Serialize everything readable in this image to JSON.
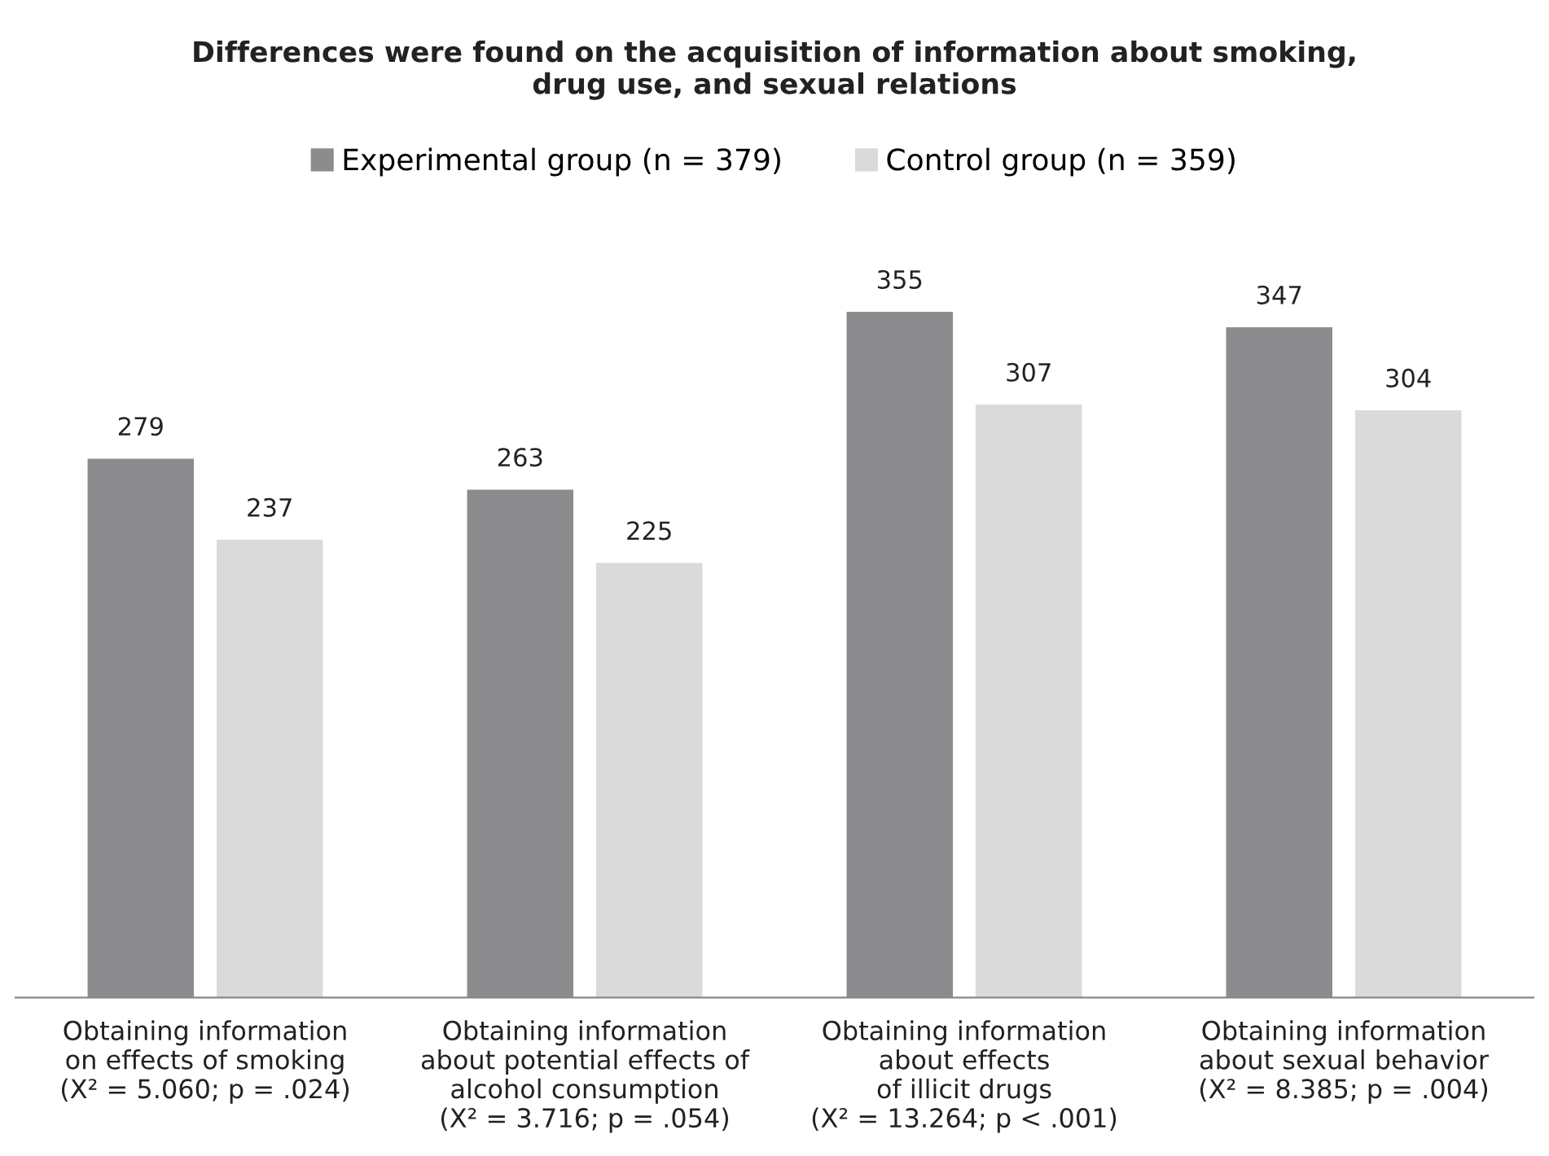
{
  "chart_data": {
    "type": "bar",
    "title": "Differences were found on the acquisition of information about smoking,\ndrug use, and sexual relations",
    "categories": [
      "Obtaining information\non effects of smoking\n(X² = 5.060; p = .024)",
      "Obtaining information\nabout potential effects of\nalcohol consumption\n(X² = 3.716; p = .054)",
      "Obtaining information\nabout effects\nof illicit drugs\n(X² = 13.264; p < .001)",
      "Obtaining information\nabout sexual behavior\n(X² = 8.385; p = .004)"
    ],
    "series": [
      {
        "name": "Experimental group (n = 379)",
        "color": "#8c8c8e",
        "values": [
          279,
          263,
          355,
          347
        ]
      },
      {
        "name": "Control group (n = 359)",
        "color": "#dadada",
        "values": [
          237,
          225,
          307,
          304
        ]
      }
    ],
    "data_labels": true,
    "legend": "top",
    "grid": false,
    "tick_labels": "x"
  }
}
